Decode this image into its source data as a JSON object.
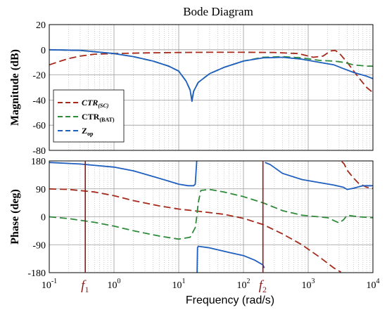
{
  "chart_data": {
    "type": "line",
    "title": "Bode Diagram",
    "xlabel": "Frequency  (rad/s)",
    "x_scale": "log",
    "xlim": [
      0.1,
      10000
    ],
    "x_ticks": [
      {
        "base": "10",
        "exp": "-1"
      },
      {
        "base": "10",
        "exp": "0"
      },
      {
        "base": "10",
        "exp": "1"
      },
      {
        "base": "10",
        "exp": "2"
      },
      {
        "base": "10",
        "exp": "3"
      },
      {
        "base": "10",
        "exp": "4"
      }
    ],
    "grid": true,
    "legend_position": "left",
    "markers": [
      {
        "label": "f",
        "sub": "1",
        "x": 0.36,
        "color": "#8b1a1a"
      },
      {
        "label": "f",
        "sub": "2",
        "x": 200,
        "color": "#8b1a1a"
      }
    ],
    "legend": [
      {
        "name": "CTR",
        "sub": "(SC)",
        "italic": true,
        "color": "#a52a1a"
      },
      {
        "name": "CTR",
        "sub": "(BAT)",
        "italic": false,
        "color": "#2e8b3a"
      },
      {
        "name": "Z",
        "sub": "op",
        "italic": false,
        "color": "#1f5fbf"
      }
    ],
    "panels": [
      {
        "ylabel": "Magnitude (dB)",
        "ylim": [
          -80,
          20
        ],
        "y_ticks": [
          "20",
          "0",
          "-20",
          "-40",
          "-60",
          "-80"
        ],
        "series": [
          {
            "name": "CTR(SC)",
            "color": "#a52a1a",
            "dash": true,
            "points": [
              [
                0.1,
                -12
              ],
              [
                0.15,
                -9
              ],
              [
                0.2,
                -7
              ],
              [
                0.3,
                -5
              ],
              [
                0.5,
                -3.5
              ],
              [
                1,
                -3
              ],
              [
                3,
                -2.5
              ],
              [
                10,
                -2.2
              ],
              [
                30,
                -2
              ],
              [
                100,
                -2
              ],
              [
                300,
                -2.2
              ],
              [
                700,
                -3
              ],
              [
                1200,
                -6
              ],
              [
                1700,
                -5
              ],
              [
                2200,
                -1
              ],
              [
                2600,
                -0.5
              ],
              [
                3000,
                -2.5
              ],
              [
                4000,
                -10
              ],
              [
                6000,
                -22
              ],
              [
                8000,
                -30
              ],
              [
                10000,
                -34
              ]
            ]
          },
          {
            "name": "CTR(BAT)",
            "color": "#2e8b3a",
            "dash": true,
            "points": [
              [
                0.1,
                0
              ],
              [
                0.3,
                -0.5
              ],
              [
                1,
                -3
              ],
              [
                2,
                -5.5
              ],
              [
                4,
                -9
              ],
              [
                7,
                -13
              ],
              [
                10,
                -17
              ],
              [
                13,
                -25
              ],
              [
                15,
                -32
              ],
              [
                16,
                -40
              ],
              [
                17,
                -33
              ],
              [
                20,
                -26
              ],
              [
                30,
                -19
              ],
              [
                50,
                -14
              ],
              [
                100,
                -9
              ],
              [
                200,
                -6
              ],
              [
                400,
                -5.5
              ],
              [
                800,
                -6.5
              ],
              [
                1500,
                -8.5
              ],
              [
                2500,
                -9
              ],
              [
                3500,
                -10
              ],
              [
                5000,
                -12
              ],
              [
                8000,
                -13
              ],
              [
                10000,
                -13
              ]
            ]
          },
          {
            "name": "Zop",
            "color": "#1f5fbf",
            "dash": false,
            "points": [
              [
                0.1,
                0
              ],
              [
                0.3,
                -0.5
              ],
              [
                1,
                -3
              ],
              [
                2,
                -5.5
              ],
              [
                4,
                -9
              ],
              [
                7,
                -13
              ],
              [
                10,
                -17
              ],
              [
                13,
                -25
              ],
              [
                15,
                -32
              ],
              [
                16,
                -41
              ],
              [
                17,
                -33
              ],
              [
                20,
                -26
              ],
              [
                30,
                -19
              ],
              [
                50,
                -14
              ],
              [
                100,
                -9
              ],
              [
                200,
                -6.5
              ],
              [
                400,
                -6
              ],
              [
                800,
                -7.5
              ],
              [
                1500,
                -10
              ],
              [
                2500,
                -12
              ],
              [
                3500,
                -15
              ],
              [
                5000,
                -18
              ],
              [
                8000,
                -21
              ],
              [
                10000,
                -23
              ]
            ]
          }
        ]
      },
      {
        "ylabel": "Phase (deg)",
        "ylim": [
          -180,
          180
        ],
        "y_ticks": [
          "180",
          "90",
          "0",
          "-90",
          "-180"
        ],
        "series": [
          {
            "name": "CTR(SC)",
            "color": "#a52a1a",
            "dash": true,
            "points": [
              [
                0.1,
                90
              ],
              [
                0.2,
                88
              ],
              [
                0.5,
                80
              ],
              [
                1,
                68
              ],
              [
                2,
                52
              ],
              [
                5,
                35
              ],
              [
                10,
                25
              ],
              [
                20,
                18
              ],
              [
                50,
                8
              ],
              [
                100,
                -5
              ],
              [
                200,
                -25
              ],
              [
                400,
                -55
              ],
              [
                800,
                -90
              ],
              [
                1500,
                -130
              ],
              [
                2500,
                -165
              ],
              [
                3000,
                -175
              ],
              [
                3200,
                -178
              ],
              null,
              [
                3300,
                178
              ],
              [
                3600,
                170
              ],
              [
                4000,
                150
              ],
              [
                5000,
                125
              ],
              [
                6000,
                108
              ],
              [
                8000,
                95
              ],
              [
                10000,
                92
              ]
            ]
          },
          {
            "name": "CTR(BAT)",
            "color": "#2e8b3a",
            "dash": true,
            "points": [
              [
                0.1,
                0
              ],
              [
                0.2,
                -6
              ],
              [
                0.5,
                -18
              ],
              [
                1,
                -30
              ],
              [
                2,
                -45
              ],
              [
                5,
                -62
              ],
              [
                10,
                -72
              ],
              [
                15,
                -66
              ],
              [
                18,
                -35
              ],
              [
                19,
                0
              ],
              [
                20,
                45
              ],
              [
                22,
                85
              ],
              [
                30,
                88
              ],
              [
                50,
                80
              ],
              [
                100,
                65
              ],
              [
                200,
                45
              ],
              [
                400,
                20
              ],
              [
                800,
                5
              ],
              [
                2000,
                -3
              ],
              [
                3000,
                -20
              ],
              [
                3500,
                -10
              ],
              [
                4000,
                5
              ],
              [
                6000,
                0
              ],
              [
                10000,
                -3
              ]
            ]
          },
          {
            "name": "Zop",
            "color": "#1f5fbf",
            "dash": false,
            "points": [
              [
                0.1,
                175
              ],
              [
                0.3,
                170
              ],
              [
                1,
                160
              ],
              [
                2,
                148
              ],
              [
                4,
                130
              ],
              [
                7,
                115
              ],
              [
                10,
                105
              ],
              [
                14,
                100
              ],
              [
                17,
                100
              ],
              [
                18,
                105
              ],
              [
                19,
                180
              ],
              null,
              [
                19.2,
                -180
              ],
              [
                19.5,
                -100
              ],
              [
                20,
                -95
              ],
              [
                30,
                -100
              ],
              [
                60,
                -115
              ],
              [
                100,
                -125
              ],
              [
                150,
                -140
              ],
              [
                200,
                -155
              ],
              [
                210,
                -165
              ],
              null,
              [
                215,
                175
              ],
              [
                260,
                168
              ],
              [
                400,
                140
              ],
              [
                800,
                120
              ],
              [
                1500,
                110
              ],
              [
                2500,
                102
              ],
              [
                3500,
                95
              ],
              [
                4000,
                88
              ],
              [
                5000,
                92
              ],
              [
                7000,
                100
              ],
              [
                10000,
                100
              ]
            ]
          }
        ]
      }
    ]
  }
}
